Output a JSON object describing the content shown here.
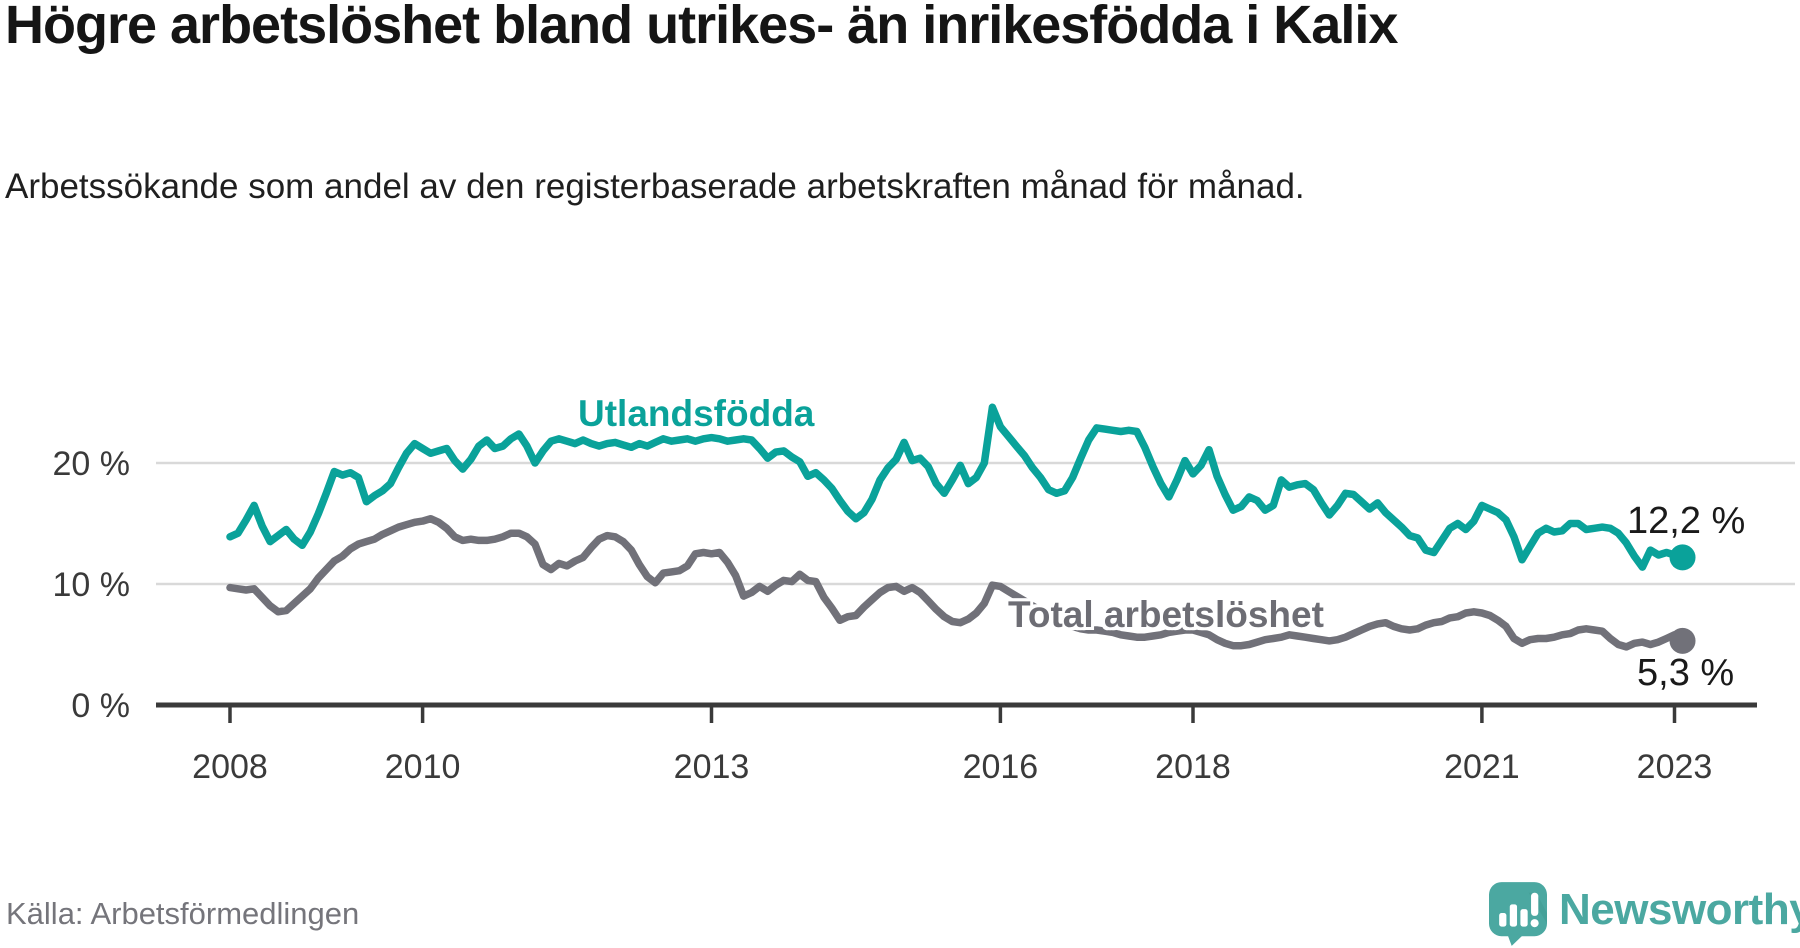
{
  "header": {
    "title": "Högre arbetslöshet bland utrikes- än inrikesfödda i Kalix",
    "subtitle": "Arbetssökande som andel av den registerbaserade arbetskraften månad för månad."
  },
  "footer": {
    "source": "Källa: Arbetsförmedlingen",
    "brand": "Newsworthy",
    "brand_color": "#4BA8A1"
  },
  "chart_data": {
    "type": "line",
    "title": "Högre arbetslöshet bland utrikes- än inrikesfödda i Kalix",
    "xlabel": "",
    "ylabel": "Arbetssökande som andel av den registerbaserade arbetskraften",
    "x_start": "2008-01",
    "x_end": "2023-02",
    "frequency": "monthly",
    "ylim": [
      0,
      26
    ],
    "grid": "horizontal",
    "grid_color": "#d9d9d9",
    "axis_color": "#3a3a3a",
    "tick_label_color": "#3a3a3a",
    "x_ticks": [
      {
        "year": 2008,
        "label": "2008"
      },
      {
        "year": 2010,
        "label": "2010"
      },
      {
        "year": 2013,
        "label": "2013"
      },
      {
        "year": 2016,
        "label": "2016"
      },
      {
        "year": 2018,
        "label": "2018"
      },
      {
        "year": 2021,
        "label": "2021"
      },
      {
        "year": 2023,
        "label": "2023"
      }
    ],
    "y_ticks": [
      {
        "value": 0,
        "label": "0 %"
      },
      {
        "value": 10,
        "label": "10 %"
      },
      {
        "value": 20,
        "label": "20 %"
      }
    ],
    "series": [
      {
        "name": "Utlandsfödda",
        "color": "#0aa29a",
        "end_label": "12,2 %",
        "end_value": 12.2,
        "values": [
          13.9,
          14.2,
          15.3,
          16.5,
          14.8,
          13.5,
          14.0,
          14.5,
          13.7,
          13.2,
          14.3,
          15.8,
          17.5,
          19.3,
          19.0,
          19.2,
          18.8,
          16.8,
          17.3,
          17.7,
          18.3,
          19.6,
          20.8,
          21.6,
          21.2,
          20.8,
          21.0,
          21.2,
          20.2,
          19.5,
          20.3,
          21.4,
          21.9,
          21.2,
          21.4,
          22.0,
          22.4,
          21.4,
          20.0,
          21.0,
          21.8,
          22.0,
          21.8,
          21.6,
          21.9,
          21.6,
          21.4,
          21.6,
          21.7,
          21.5,
          21.3,
          21.6,
          21.4,
          21.7,
          22.0,
          21.8,
          21.9,
          22.0,
          21.8,
          22.0,
          22.1,
          22.0,
          21.8,
          21.9,
          22.0,
          21.9,
          21.2,
          20.4,
          20.9,
          21.0,
          20.5,
          20.1,
          18.9,
          19.2,
          18.6,
          17.9,
          16.9,
          16.0,
          15.4,
          15.9,
          17.0,
          18.6,
          19.6,
          20.3,
          21.7,
          20.2,
          20.4,
          19.7,
          18.3,
          17.5,
          18.6,
          19.8,
          18.3,
          18.8,
          20.0,
          24.6,
          23.0,
          22.2,
          21.4,
          20.6,
          19.6,
          18.8,
          17.8,
          17.5,
          17.7,
          18.8,
          20.4,
          21.9,
          22.9,
          22.8,
          22.7,
          22.6,
          22.7,
          22.6,
          21.3,
          19.7,
          18.3,
          17.2,
          18.6,
          20.2,
          19.1,
          19.8,
          21.1,
          18.9,
          17.4,
          16.1,
          16.4,
          17.2,
          16.9,
          16.1,
          16.5,
          18.6,
          18.0,
          18.2,
          18.3,
          17.8,
          16.7,
          15.7,
          16.5,
          17.5,
          17.4,
          16.8,
          16.2,
          16.7,
          15.9,
          15.3,
          14.7,
          14.0,
          13.8,
          12.8,
          12.6,
          13.6,
          14.6,
          15.0,
          14.5,
          15.2,
          16.5,
          16.2,
          15.9,
          15.3,
          13.9,
          12.0,
          13.1,
          14.2,
          14.6,
          14.3,
          14.4,
          15.0,
          15.0,
          14.5,
          14.6,
          14.7,
          14.6,
          14.2,
          13.4,
          12.3,
          11.4,
          12.8,
          12.4,
          12.6,
          12.4,
          12.2
        ]
      },
      {
        "name": "Total arbetslöshet",
        "color": "#717179",
        "end_label": "5,3 %",
        "end_value": 5.3,
        "values": [
          9.7,
          9.6,
          9.5,
          9.6,
          8.9,
          8.2,
          7.7,
          7.8,
          8.4,
          9.0,
          9.6,
          10.5,
          11.2,
          11.9,
          12.3,
          12.9,
          13.3,
          13.5,
          13.7,
          14.1,
          14.4,
          14.7,
          14.9,
          15.1,
          15.2,
          15.4,
          15.1,
          14.6,
          13.9,
          13.6,
          13.7,
          13.6,
          13.6,
          13.7,
          13.9,
          14.2,
          14.2,
          13.9,
          13.3,
          11.6,
          11.2,
          11.7,
          11.5,
          11.9,
          12.2,
          13.0,
          13.7,
          14.0,
          13.9,
          13.5,
          12.8,
          11.6,
          10.6,
          10.1,
          10.9,
          11.0,
          11.1,
          11.5,
          12.5,
          12.6,
          12.5,
          12.6,
          11.8,
          10.7,
          9.0,
          9.3,
          9.8,
          9.4,
          9.9,
          10.3,
          10.2,
          10.8,
          10.3,
          10.2,
          8.9,
          8.0,
          7.0,
          7.3,
          7.4,
          8.1,
          8.7,
          9.3,
          9.7,
          9.8,
          9.4,
          9.7,
          9.3,
          8.6,
          7.9,
          7.3,
          6.9,
          6.8,
          7.1,
          7.6,
          8.4,
          9.9,
          9.8,
          9.4,
          9.0,
          8.6,
          8.2,
          7.8,
          7.4,
          7.1,
          6.8,
          6.5,
          6.3,
          6.2,
          6.2,
          6.1,
          6.0,
          5.8,
          5.7,
          5.6,
          5.6,
          5.7,
          5.8,
          6.0,
          6.1,
          6.2,
          6.2,
          6.0,
          5.8,
          5.4,
          5.1,
          4.9,
          4.9,
          5.0,
          5.2,
          5.4,
          5.5,
          5.6,
          5.8,
          5.7,
          5.6,
          5.5,
          5.4,
          5.3,
          5.4,
          5.6,
          5.9,
          6.2,
          6.5,
          6.7,
          6.8,
          6.5,
          6.3,
          6.2,
          6.3,
          6.6,
          6.8,
          6.9,
          7.2,
          7.3,
          7.6,
          7.7,
          7.6,
          7.4,
          7.0,
          6.5,
          5.5,
          5.1,
          5.4,
          5.5,
          5.5,
          5.6,
          5.8,
          5.9,
          6.2,
          6.3,
          6.2,
          6.1,
          5.5,
          5.0,
          4.8,
          5.1,
          5.2,
          5.0,
          5.2,
          5.5,
          5.8,
          5.3
        ]
      }
    ]
  }
}
